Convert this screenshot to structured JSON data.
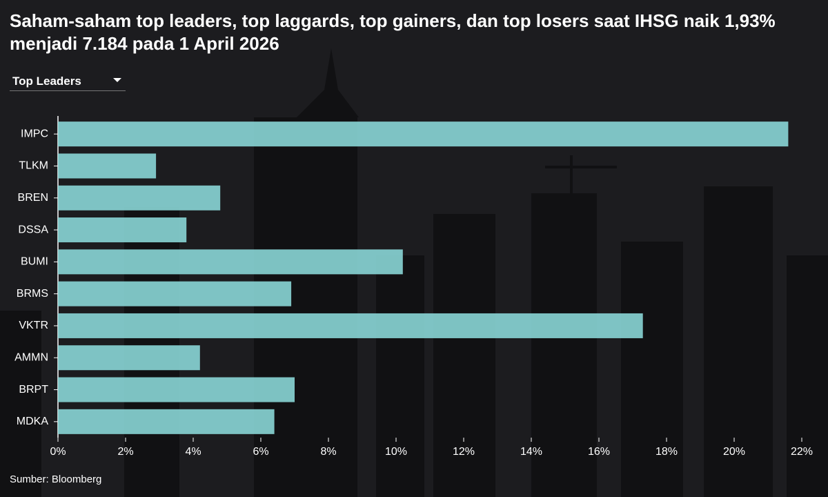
{
  "title": "Saham-saham top leaders, top laggards, top gainers, dan top losers saat IHSG naik 1,93% menjadi 7.184 pada 1 April 2026",
  "dropdown": "Top Leaders",
  "source": "Sumber: Bloomberg",
  "chart_data": {
    "type": "hbar",
    "categories": [
      "IMPC",
      "TLKM",
      "BREN",
      "DSSA",
      "BUMI",
      "BRMS",
      "VKTR",
      "AMMN",
      "BRPT",
      "MDKA"
    ],
    "values": [
      21.6,
      2.9,
      4.8,
      3.8,
      10.2,
      6.9,
      17.3,
      4.2,
      7.0,
      6.4
    ],
    "color": "#8ad6d6",
    "xlim": [
      0,
      22
    ],
    "xticks": [
      {
        "value": 0,
        "label": "0%"
      },
      {
        "value": 2,
        "label": "2%"
      },
      {
        "value": 4,
        "label": "4%"
      },
      {
        "value": 6,
        "label": "6%"
      },
      {
        "value": 8,
        "label": "8%"
      },
      {
        "value": 10,
        "label": "10%"
      },
      {
        "value": 12,
        "label": "12%"
      },
      {
        "value": 14,
        "label": "14%"
      },
      {
        "value": 16,
        "label": "16%"
      },
      {
        "value": 18,
        "label": "18%"
      },
      {
        "value": 20,
        "label": "20%"
      },
      {
        "value": 22,
        "label": "22%"
      }
    ]
  }
}
